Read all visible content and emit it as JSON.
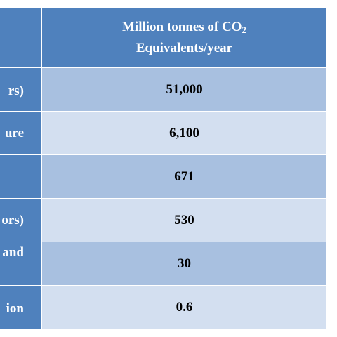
{
  "table": {
    "header": {
      "line1": "Million tonnes of CO",
      "subscript": "2",
      "line2": "Equivalents/year"
    },
    "rows": [
      {
        "label": "rs)",
        "value": "51,000"
      },
      {
        "label": "ure",
        "value": "6,100"
      },
      {
        "value": "671"
      },
      {
        "label": "ors)",
        "value": "530"
      },
      {
        "label": "and",
        "value": "30"
      },
      {
        "label": "ion",
        "value": "0.6"
      }
    ]
  }
}
